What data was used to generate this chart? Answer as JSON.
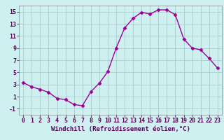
{
  "x": [
    0,
    1,
    2,
    3,
    4,
    5,
    6,
    7,
    8,
    9,
    10,
    11,
    12,
    13,
    14,
    15,
    16,
    17,
    18,
    19,
    20,
    21,
    22,
    23
  ],
  "y": [
    3.3,
    2.6,
    2.2,
    1.7,
    0.7,
    0.5,
    -0.3,
    -0.5,
    1.8,
    3.2,
    5.1,
    9.0,
    12.3,
    13.9,
    14.9,
    14.6,
    15.3,
    15.3,
    14.5,
    10.5,
    9.0,
    8.7,
    7.3,
    5.7
  ],
  "line_color": "#990099",
  "marker": "D",
  "markersize": 2.5,
  "linewidth": 1.0,
  "xlabel": "Windchill (Refroidissement éolien,°C)",
  "xlabel_fontsize": 6.5,
  "background_color": "#cff0f0",
  "grid_color": "#aacccc",
  "xlim": [
    -0.5,
    23.5
  ],
  "ylim": [
    -2,
    16
  ],
  "yticks": [
    -1,
    1,
    3,
    5,
    7,
    9,
    11,
    13,
    15
  ],
  "xticks": [
    0,
    1,
    2,
    3,
    4,
    5,
    6,
    7,
    8,
    9,
    10,
    11,
    12,
    13,
    14,
    15,
    16,
    17,
    18,
    19,
    20,
    21,
    22,
    23
  ],
  "tick_fontsize": 6.0,
  "spine_color": "#888888"
}
